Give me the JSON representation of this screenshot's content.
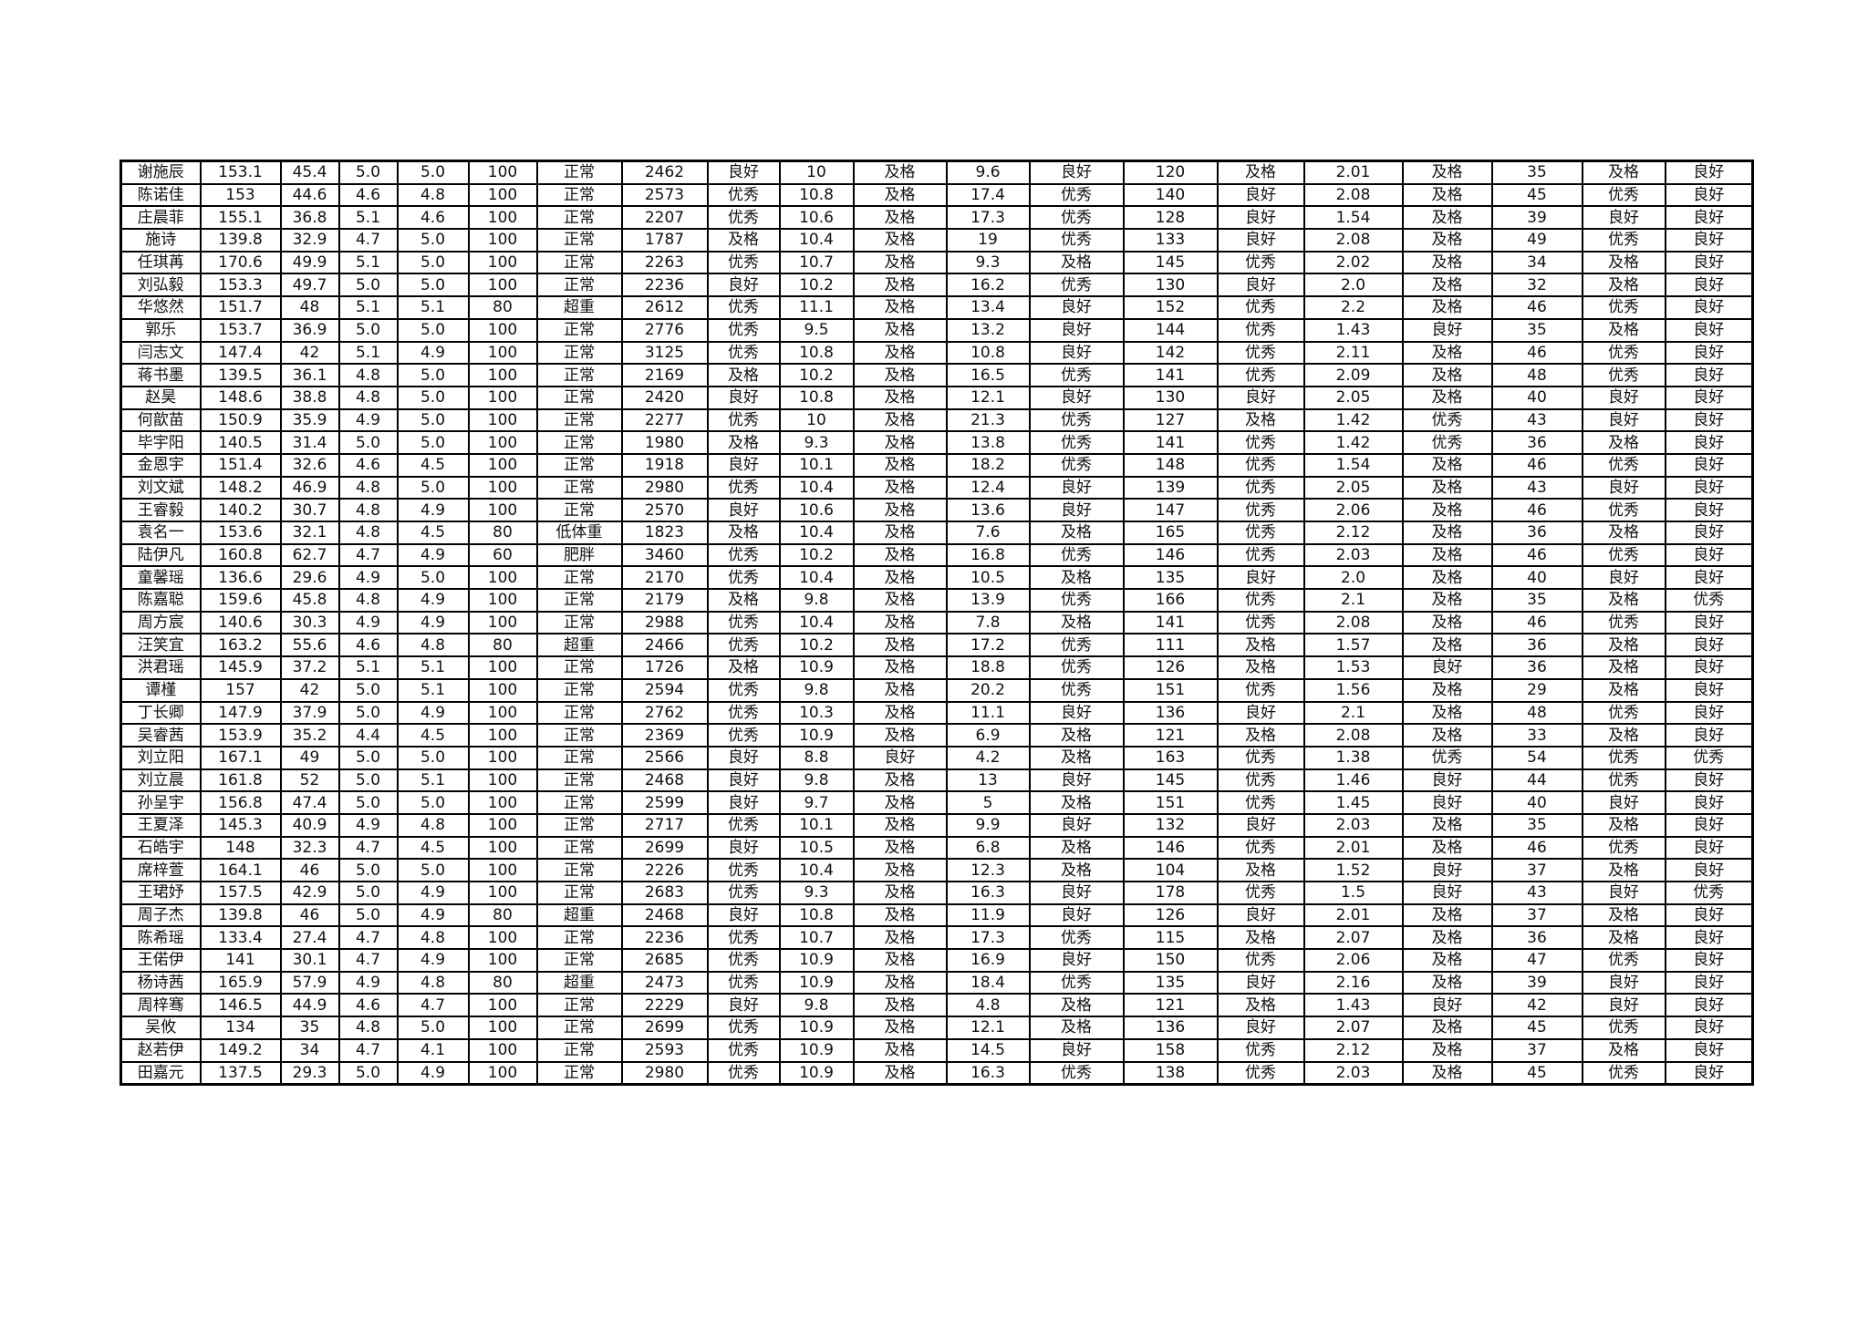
{
  "table": {
    "rows": [
      [
        "谢施辰",
        "153.1",
        "45.4",
        "5.0",
        "5.0",
        "100",
        "正常",
        "2462",
        "良好",
        "10",
        "及格",
        "9.6",
        "良好",
        "120",
        "及格",
        "2.01",
        "及格",
        "35",
        "及格",
        "良好"
      ],
      [
        "陈诺佳",
        "153",
        "44.6",
        "4.6",
        "4.8",
        "100",
        "正常",
        "2573",
        "优秀",
        "10.8",
        "及格",
        "17.4",
        "优秀",
        "140",
        "良好",
        "2.08",
        "及格",
        "45",
        "优秀",
        "良好"
      ],
      [
        "庄晨菲",
        "155.1",
        "36.8",
        "5.1",
        "4.6",
        "100",
        "正常",
        "2207",
        "优秀",
        "10.6",
        "及格",
        "17.3",
        "优秀",
        "128",
        "良好",
        "1.54",
        "及格",
        "39",
        "良好",
        "良好"
      ],
      [
        "施诗",
        "139.8",
        "32.9",
        "4.7",
        "5.0",
        "100",
        "正常",
        "1787",
        "及格",
        "10.4",
        "及格",
        "19",
        "优秀",
        "133",
        "良好",
        "2.08",
        "及格",
        "49",
        "优秀",
        "良好"
      ],
      [
        "任琪苒",
        "170.6",
        "49.9",
        "5.1",
        "5.0",
        "100",
        "正常",
        "2263",
        "优秀",
        "10.7",
        "及格",
        "9.3",
        "及格",
        "145",
        "优秀",
        "2.02",
        "及格",
        "34",
        "及格",
        "良好"
      ],
      [
        "刘弘毅",
        "153.3",
        "49.7",
        "5.0",
        "5.0",
        "100",
        "正常",
        "2236",
        "良好",
        "10.2",
        "及格",
        "16.2",
        "优秀",
        "130",
        "良好",
        "2.0",
        "及格",
        "32",
        "及格",
        "良好"
      ],
      [
        "华悠然",
        "151.7",
        "48",
        "5.1",
        "5.1",
        "80",
        "超重",
        "2612",
        "优秀",
        "11.1",
        "及格",
        "13.4",
        "良好",
        "152",
        "优秀",
        "2.2",
        "及格",
        "46",
        "优秀",
        "良好"
      ],
      [
        "郭乐",
        "153.7",
        "36.9",
        "5.0",
        "5.0",
        "100",
        "正常",
        "2776",
        "优秀",
        "9.5",
        "及格",
        "13.2",
        "良好",
        "144",
        "优秀",
        "1.43",
        "良好",
        "35",
        "及格",
        "良好"
      ],
      [
        "闫志文",
        "147.4",
        "42",
        "5.1",
        "4.9",
        "100",
        "正常",
        "3125",
        "优秀",
        "10.8",
        "及格",
        "10.8",
        "良好",
        "142",
        "优秀",
        "2.11",
        "及格",
        "46",
        "优秀",
        "良好"
      ],
      [
        "蒋书墨",
        "139.5",
        "36.1",
        "4.8",
        "5.0",
        "100",
        "正常",
        "2169",
        "及格",
        "10.2",
        "及格",
        "16.5",
        "优秀",
        "141",
        "优秀",
        "2.09",
        "及格",
        "48",
        "优秀",
        "良好"
      ],
      [
        "赵昊",
        "148.6",
        "38.8",
        "4.8",
        "5.0",
        "100",
        "正常",
        "2420",
        "良好",
        "10.8",
        "及格",
        "12.1",
        "良好",
        "130",
        "良好",
        "2.05",
        "及格",
        "40",
        "良好",
        "良好"
      ],
      [
        "何歆苗",
        "150.9",
        "35.9",
        "4.9",
        "5.0",
        "100",
        "正常",
        "2277",
        "优秀",
        "10",
        "及格",
        "21.3",
        "优秀",
        "127",
        "及格",
        "1.42",
        "优秀",
        "43",
        "良好",
        "良好"
      ],
      [
        "毕宇阳",
        "140.5",
        "31.4",
        "5.0",
        "5.0",
        "100",
        "正常",
        "1980",
        "及格",
        "9.3",
        "及格",
        "13.8",
        "优秀",
        "141",
        "优秀",
        "1.42",
        "优秀",
        "36",
        "及格",
        "良好"
      ],
      [
        "金恩宇",
        "151.4",
        "32.6",
        "4.6",
        "4.5",
        "100",
        "正常",
        "1918",
        "良好",
        "10.1",
        "及格",
        "18.2",
        "优秀",
        "148",
        "优秀",
        "1.54",
        "及格",
        "46",
        "优秀",
        "良好"
      ],
      [
        "刘文斌",
        "148.2",
        "46.9",
        "4.8",
        "5.0",
        "100",
        "正常",
        "2980",
        "优秀",
        "10.4",
        "及格",
        "12.4",
        "良好",
        "139",
        "优秀",
        "2.05",
        "及格",
        "43",
        "良好",
        "良好"
      ],
      [
        "王睿毅",
        "140.2",
        "30.7",
        "4.8",
        "4.9",
        "100",
        "正常",
        "2570",
        "良好",
        "10.6",
        "及格",
        "13.6",
        "良好",
        "147",
        "优秀",
        "2.06",
        "及格",
        "46",
        "优秀",
        "良好"
      ],
      [
        "袁名一",
        "153.6",
        "32.1",
        "4.8",
        "4.5",
        "80",
        "低体重",
        "1823",
        "及格",
        "10.4",
        "及格",
        "7.6",
        "及格",
        "165",
        "优秀",
        "2.12",
        "及格",
        "36",
        "及格",
        "良好"
      ],
      [
        "陆伊凡",
        "160.8",
        "62.7",
        "4.7",
        "4.9",
        "60",
        "肥胖",
        "3460",
        "优秀",
        "10.2",
        "及格",
        "16.8",
        "优秀",
        "146",
        "优秀",
        "2.03",
        "及格",
        "46",
        "优秀",
        "良好"
      ],
      [
        "童馨瑶",
        "136.6",
        "29.6",
        "4.9",
        "5.0",
        "100",
        "正常",
        "2170",
        "优秀",
        "10.4",
        "及格",
        "10.5",
        "及格",
        "135",
        "良好",
        "2.0",
        "及格",
        "40",
        "良好",
        "良好"
      ],
      [
        "陈嘉聪",
        "159.6",
        "45.8",
        "4.8",
        "4.9",
        "100",
        "正常",
        "2179",
        "及格",
        "9.8",
        "及格",
        "13.9",
        "优秀",
        "166",
        "优秀",
        "2.1",
        "及格",
        "35",
        "及格",
        "优秀"
      ],
      [
        "周方宸",
        "140.6",
        "30.3",
        "4.9",
        "4.9",
        "100",
        "正常",
        "2988",
        "优秀",
        "10.4",
        "及格",
        "7.8",
        "及格",
        "141",
        "优秀",
        "2.08",
        "及格",
        "46",
        "优秀",
        "良好"
      ],
      [
        "汪笑宜",
        "163.2",
        "55.6",
        "4.6",
        "4.8",
        "80",
        "超重",
        "2466",
        "优秀",
        "10.2",
        "及格",
        "17.2",
        "优秀",
        "111",
        "及格",
        "1.57",
        "及格",
        "36",
        "及格",
        "良好"
      ],
      [
        "洪君瑶",
        "145.9",
        "37.2",
        "5.1",
        "5.1",
        "100",
        "正常",
        "1726",
        "及格",
        "10.9",
        "及格",
        "18.8",
        "优秀",
        "126",
        "及格",
        "1.53",
        "良好",
        "36",
        "及格",
        "良好"
      ],
      [
        "谭槿",
        "157",
        "42",
        "5.0",
        "5.1",
        "100",
        "正常",
        "2594",
        "优秀",
        "9.8",
        "及格",
        "20.2",
        "优秀",
        "151",
        "优秀",
        "1.56",
        "及格",
        "29",
        "及格",
        "良好"
      ],
      [
        "丁长卿",
        "147.9",
        "37.9",
        "5.0",
        "4.9",
        "100",
        "正常",
        "2762",
        "优秀",
        "10.3",
        "及格",
        "11.1",
        "良好",
        "136",
        "良好",
        "2.1",
        "及格",
        "48",
        "优秀",
        "良好"
      ],
      [
        "吴睿茜",
        "153.9",
        "35.2",
        "4.4",
        "4.5",
        "100",
        "正常",
        "2369",
        "优秀",
        "10.9",
        "及格",
        "6.9",
        "及格",
        "121",
        "及格",
        "2.08",
        "及格",
        "33",
        "及格",
        "良好"
      ],
      [
        "刘立阳",
        "167.1",
        "49",
        "5.0",
        "5.0",
        "100",
        "正常",
        "2566",
        "良好",
        "8.8",
        "良好",
        "4.2",
        "及格",
        "163",
        "优秀",
        "1.38",
        "优秀",
        "54",
        "优秀",
        "优秀"
      ],
      [
        "刘立晨",
        "161.8",
        "52",
        "5.0",
        "5.1",
        "100",
        "正常",
        "2468",
        "良好",
        "9.8",
        "及格",
        "13",
        "良好",
        "145",
        "优秀",
        "1.46",
        "良好",
        "44",
        "优秀",
        "良好"
      ],
      [
        "孙呈宇",
        "156.8",
        "47.4",
        "5.0",
        "5.0",
        "100",
        "正常",
        "2599",
        "良好",
        "9.7",
        "及格",
        "5",
        "及格",
        "151",
        "优秀",
        "1.45",
        "良好",
        "40",
        "良好",
        "良好"
      ],
      [
        "王夏泽",
        "145.3",
        "40.9",
        "4.9",
        "4.8",
        "100",
        "正常",
        "2717",
        "优秀",
        "10.1",
        "及格",
        "9.9",
        "良好",
        "132",
        "良好",
        "2.03",
        "及格",
        "35",
        "及格",
        "良好"
      ],
      [
        "石皓宇",
        "148",
        "32.3",
        "4.7",
        "4.5",
        "100",
        "正常",
        "2699",
        "良好",
        "10.5",
        "及格",
        "6.8",
        "及格",
        "146",
        "优秀",
        "2.01",
        "及格",
        "46",
        "优秀",
        "良好"
      ],
      [
        "席梓萱",
        "164.1",
        "46",
        "5.0",
        "5.0",
        "100",
        "正常",
        "2226",
        "优秀",
        "10.4",
        "及格",
        "12.3",
        "及格",
        "104",
        "及格",
        "1.52",
        "良好",
        "37",
        "及格",
        "良好"
      ],
      [
        "王珺妤",
        "157.5",
        "42.9",
        "5.0",
        "4.9",
        "100",
        "正常",
        "2683",
        "优秀",
        "9.3",
        "及格",
        "16.3",
        "良好",
        "178",
        "优秀",
        "1.5",
        "良好",
        "43",
        "良好",
        "优秀"
      ],
      [
        "周子杰",
        "139.8",
        "46",
        "5.0",
        "4.9",
        "80",
        "超重",
        "2468",
        "良好",
        "10.8",
        "及格",
        "11.9",
        "良好",
        "126",
        "良好",
        "2.01",
        "及格",
        "37",
        "及格",
        "良好"
      ],
      [
        "陈希瑶",
        "133.4",
        "27.4",
        "4.7",
        "4.8",
        "100",
        "正常",
        "2236",
        "优秀",
        "10.7",
        "及格",
        "17.3",
        "优秀",
        "115",
        "及格",
        "2.07",
        "及格",
        "36",
        "及格",
        "良好"
      ],
      [
        "王偌伊",
        "141",
        "30.1",
        "4.7",
        "4.9",
        "100",
        "正常",
        "2685",
        "优秀",
        "10.9",
        "及格",
        "16.9",
        "良好",
        "150",
        "优秀",
        "2.06",
        "及格",
        "47",
        "优秀",
        "良好"
      ],
      [
        "杨诗茜",
        "165.9",
        "57.9",
        "4.9",
        "4.8",
        "80",
        "超重",
        "2473",
        "优秀",
        "10.9",
        "及格",
        "18.4",
        "优秀",
        "135",
        "良好",
        "2.16",
        "及格",
        "39",
        "良好",
        "良好"
      ],
      [
        "周梓骞",
        "146.5",
        "44.9",
        "4.6",
        "4.7",
        "100",
        "正常",
        "2229",
        "良好",
        "9.8",
        "及格",
        "4.8",
        "及格",
        "121",
        "及格",
        "1.43",
        "良好",
        "42",
        "良好",
        "良好"
      ],
      [
        "吴攸",
        "134",
        "35",
        "4.8",
        "5.0",
        "100",
        "正常",
        "2699",
        "优秀",
        "10.9",
        "及格",
        "12.1",
        "及格",
        "136",
        "良好",
        "2.07",
        "及格",
        "45",
        "优秀",
        "良好"
      ],
      [
        "赵若伊",
        "149.2",
        "34",
        "4.7",
        "4.1",
        "100",
        "正常",
        "2593",
        "优秀",
        "10.9",
        "及格",
        "14.5",
        "良好",
        "158",
        "优秀",
        "2.12",
        "及格",
        "37",
        "及格",
        "良好"
      ],
      [
        "田嘉元",
        "137.5",
        "29.3",
        "5.0",
        "4.9",
        "100",
        "正常",
        "2980",
        "优秀",
        "10.9",
        "及格",
        "16.3",
        "优秀",
        "138",
        "优秀",
        "2.03",
        "及格",
        "45",
        "优秀",
        "良好"
      ]
    ]
  }
}
